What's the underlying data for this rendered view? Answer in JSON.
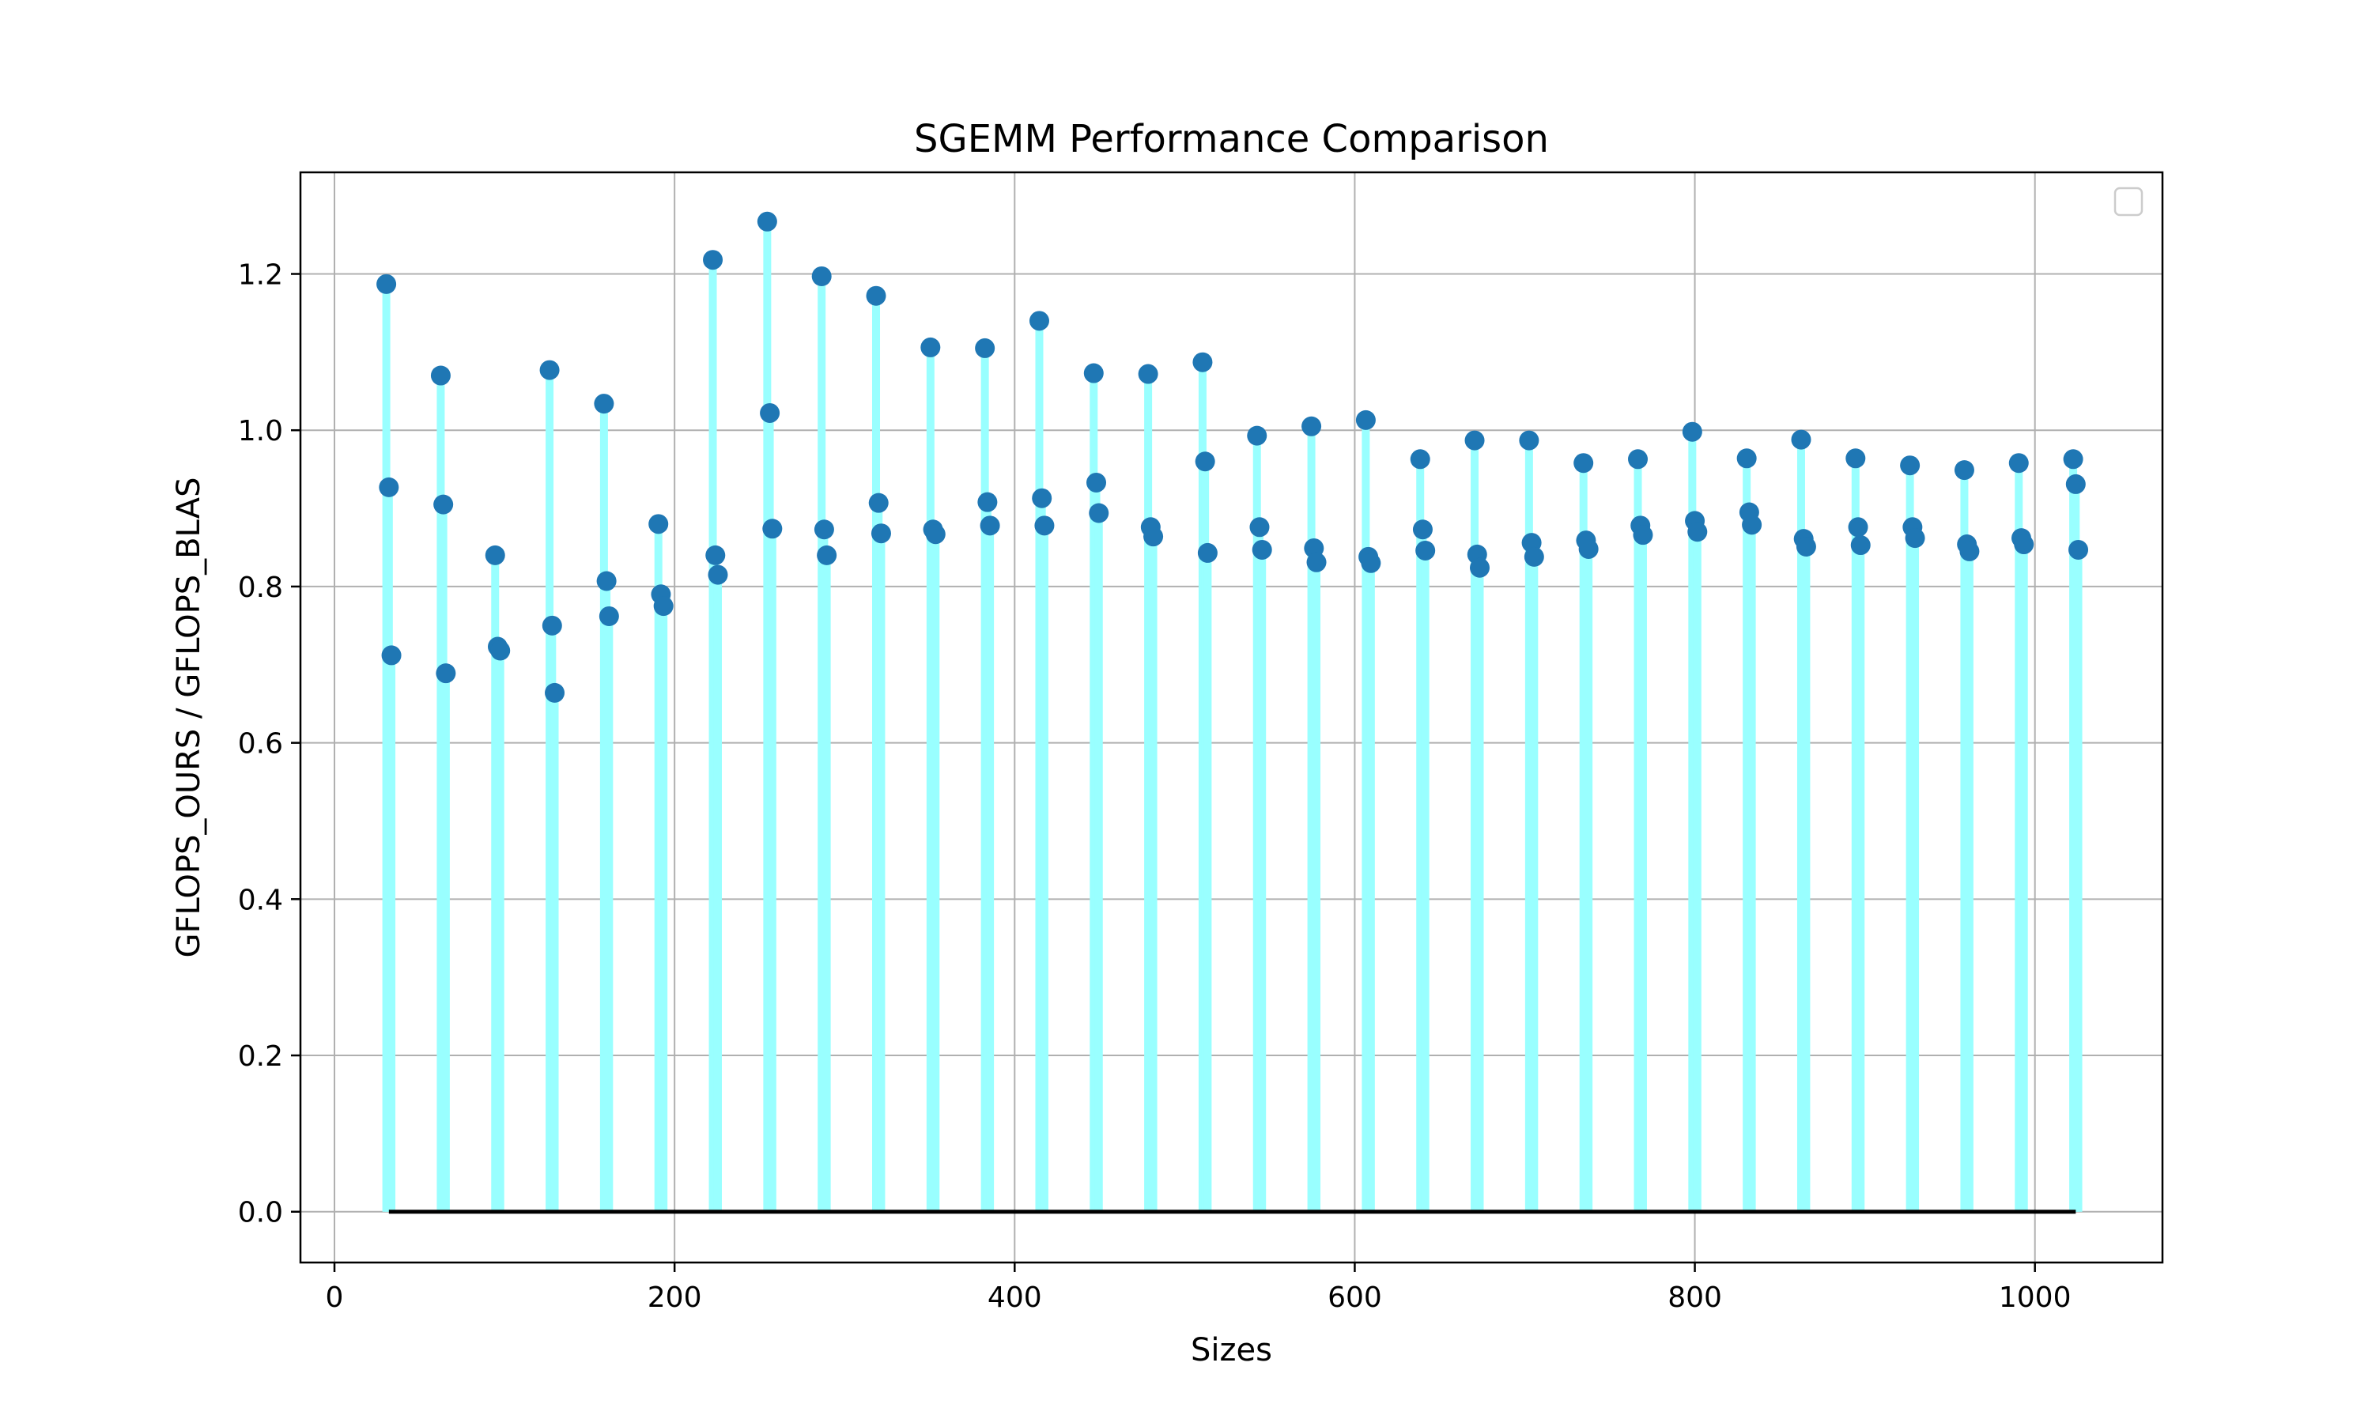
{
  "chart_data": {
    "type": "scatter",
    "style": "stem",
    "title": "SGEMM Performance Comparison",
    "xlabel": "Sizes",
    "ylabel": "GFLOPS_OURS / GFLOPS_BLAS",
    "xlim": [
      -20,
      1075
    ],
    "ylim": [
      -0.065,
      1.33
    ],
    "xticks": [
      0,
      200,
      400,
      600,
      800,
      1000
    ],
    "yticks": [
      0.0,
      0.2,
      0.4,
      0.6,
      0.8,
      1.0,
      1.2
    ],
    "xtick_labels": [
      "0",
      "200",
      "400",
      "600",
      "800",
      "1000"
    ],
    "ytick_labels": [
      "0.0",
      "0.2",
      "0.4",
      "0.6",
      "0.8",
      "1.0",
      "1.2"
    ],
    "grid": true,
    "legend": "top-right",
    "baseline": 0.0,
    "colors": {
      "marker": "#1f77b4",
      "stem": "#99ffff",
      "baseline": "#000000",
      "grid": "#b0b0b0"
    },
    "series": [
      {
        "x": [
          32,
          64,
          96,
          128,
          160,
          192,
          224,
          256,
          288,
          320,
          352,
          384,
          416,
          448,
          480,
          512,
          544,
          576,
          608,
          640,
          672,
          704,
          736,
          768,
          800,
          832,
          864,
          896,
          928,
          960,
          992,
          1024
        ],
        "values": [
          1.187,
          1.07,
          0.84,
          1.077,
          1.034,
          0.88,
          1.218,
          1.267,
          1.197,
          1.172,
          1.106,
          1.105,
          1.14,
          1.073,
          1.072,
          1.087,
          0.993,
          1.005,
          1.013,
          0.963,
          0.987,
          0.987,
          0.958,
          0.963,
          0.998,
          0.964,
          0.988,
          0.964,
          0.955,
          0.949,
          0.958,
          0.963
        ]
      },
      {
        "x": [
          32,
          64,
          96,
          128,
          160,
          192,
          224,
          256,
          288,
          320,
          352,
          384,
          416,
          448,
          480,
          512,
          544,
          576,
          608,
          640,
          672,
          704,
          736,
          768,
          800,
          832,
          864,
          896,
          928,
          960,
          992,
          1024
        ],
        "values": [
          0.927,
          0.905,
          0.723,
          0.75,
          0.807,
          0.79,
          0.84,
          1.022,
          0.873,
          0.907,
          0.873,
          0.908,
          0.913,
          0.933,
          0.876,
          0.96,
          0.876,
          0.849,
          0.838,
          0.873,
          0.841,
          0.856,
          0.859,
          0.878,
          0.884,
          0.895,
          0.861,
          0.876,
          0.876,
          0.854,
          0.862,
          0.931
        ]
      },
      {
        "x": [
          32,
          64,
          96,
          128,
          160,
          192,
          224,
          256,
          288,
          320,
          352,
          384,
          416,
          448,
          480,
          512,
          544,
          576,
          608,
          640,
          672,
          704,
          736,
          768,
          800,
          832,
          864,
          896,
          928,
          960,
          992,
          1024
        ],
        "values": [
          0.712,
          0.689,
          0.718,
          0.664,
          0.762,
          0.775,
          0.815,
          0.874,
          0.84,
          0.868,
          0.867,
          0.878,
          0.878,
          0.894,
          0.864,
          0.843,
          0.847,
          0.831,
          0.83,
          0.846,
          0.824,
          0.838,
          0.848,
          0.866,
          0.87,
          0.879,
          0.851,
          0.853,
          0.862,
          0.845,
          0.854,
          0.847
        ]
      }
    ]
  }
}
